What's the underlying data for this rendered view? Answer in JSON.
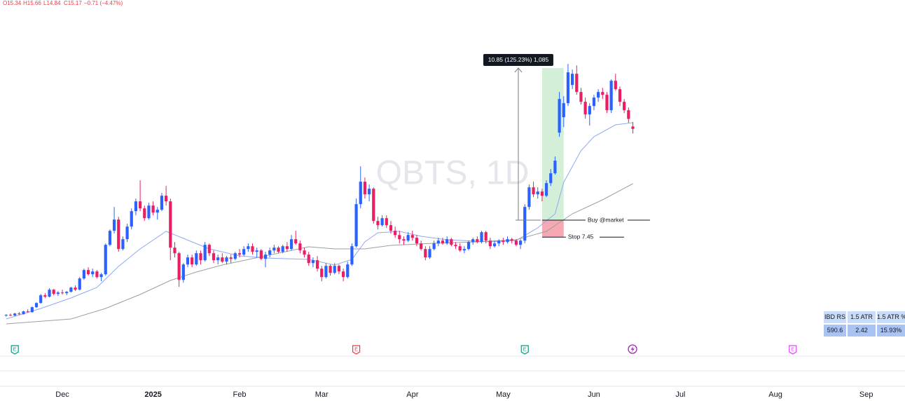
{
  "chart_data": {
    "type": "candlestick",
    "watermark": "QBTS, 1D",
    "header": {
      "ohlc": [
        "O15.34",
        "H15.66",
        "L14.84",
        "C15.17"
      ],
      "change": "−0.71 (−4.47%)"
    },
    "up_color": "#2962ff",
    "down_color": "#e91e63",
    "xlim": [
      -1.43,
      207.97
    ],
    "ylim": [
      0.86,
      24.36
    ],
    "xticks": [
      {
        "value": 13,
        "label": "Dec"
      },
      {
        "value": 34,
        "label": "2025"
      },
      {
        "value": 54,
        "label": "Feb"
      },
      {
        "value": 73,
        "label": "Mar"
      },
      {
        "value": 94,
        "label": "Apr"
      },
      {
        "value": 115,
        "label": "May"
      },
      {
        "value": 136,
        "label": "Jun"
      },
      {
        "value": 156,
        "label": "Jul"
      },
      {
        "value": 178,
        "label": "Aug"
      },
      {
        "value": 199,
        "label": "Sep"
      }
    ],
    "x": [
      0,
      1,
      2,
      3,
      4,
      5,
      6,
      7,
      8,
      9,
      10,
      11,
      12,
      13,
      14,
      15,
      16,
      17,
      18,
      19,
      20,
      21,
      22,
      23,
      24,
      25,
      26,
      27,
      28,
      29,
      30,
      31,
      32,
      33,
      34,
      35,
      36,
      37,
      38,
      39,
      40,
      41,
      42,
      43,
      44,
      45,
      46,
      47,
      48,
      49,
      50,
      51,
      52,
      53,
      54,
      55,
      56,
      57,
      58,
      59,
      60,
      61,
      62,
      63,
      64,
      65,
      66,
      67,
      68,
      69,
      70,
      71,
      72,
      73,
      74,
      75,
      76,
      77,
      78,
      79,
      80,
      81,
      82,
      83,
      84,
      85,
      86,
      87,
      88,
      89,
      90,
      91,
      92,
      93,
      94,
      95,
      96,
      97,
      98,
      99,
      100,
      101,
      102,
      103,
      104,
      105,
      106,
      107,
      108,
      109,
      110,
      111,
      112,
      113,
      114,
      115,
      116,
      117,
      118,
      119,
      120,
      121,
      122,
      123,
      124,
      125,
      126,
      127,
      128,
      129,
      130,
      131,
      132,
      133,
      134,
      135,
      136,
      137,
      138,
      139,
      140,
      141,
      142,
      143,
      144,
      145
    ],
    "open": [
      1.85,
      1.9,
      1.86,
      2.0,
      1.95,
      2.15,
      2.1,
      2.45,
      2.75,
      3.3,
      3.2,
      3.7,
      3.4,
      3.5,
      3.45,
      3.55,
      3.85,
      3.7,
      4.5,
      5.1,
      4.8,
      5.0,
      4.6,
      4.8,
      6.9,
      7.9,
      8.7,
      6.6,
      7.3,
      8.2,
      9.3,
      10.0,
      9.5,
      8.8,
      9.7,
      9.2,
      9.4,
      10.4,
      10.0,
      6.7,
      6.3,
      4.4,
      5.5,
      6.0,
      5.5,
      6.3,
      5.8,
      6.9,
      6.3,
      5.8,
      6.0,
      5.7,
      6.0,
      5.9,
      6.3,
      6.2,
      6.6,
      6.8,
      6.4,
      6.5,
      5.9,
      6.2,
      6.5,
      6.7,
      6.4,
      6.8,
      6.6,
      7.3,
      7.0,
      6.5,
      6.2,
      5.6,
      5.8,
      5.2,
      4.6,
      5.4,
      4.9,
      5.4,
      5.0,
      4.6,
      5.5,
      6.8,
      9.8,
      11.4,
      10.5,
      10.9,
      8.6,
      8.3,
      8.8,
      8.3,
      7.9,
      7.6,
      7.3,
      7.2,
      7.6,
      7.4,
      7.0,
      6.6,
      6.0,
      6.6,
      7.0,
      7.2,
      7.0,
      7.3,
      6.9,
      6.8,
      6.5,
      6.6,
      7.1,
      7.3,
      7.1,
      7.8,
      7.2,
      6.8,
      7.0,
      7.2,
      7.1,
      7.3,
      7.2,
      6.9,
      7.2,
      9.6,
      11.0,
      10.5,
      10.7,
      10.4,
      11.3,
      12.0,
      14.9,
      16.0,
      17.0,
      18.3,
      19.1,
      17.8,
      17.1,
      16.2,
      16.8,
      17.4,
      17.8,
      17.6,
      16.5,
      18.6,
      18.0,
      17.1,
      16.5,
      15.34
    ],
    "high": [
      1.95,
      2.0,
      2.05,
      2.1,
      2.2,
      2.3,
      2.5,
      2.8,
      3.4,
      3.45,
      3.8,
      3.75,
      3.6,
      3.7,
      3.6,
      3.9,
      4.0,
      4.6,
      5.2,
      5.3,
      5.2,
      5.1,
      4.9,
      7.0,
      8.0,
      9.6,
      8.9,
      7.5,
      8.4,
      9.5,
      10.2,
      11.5,
      9.7,
      9.9,
      10.0,
      9.6,
      10.6,
      11.1,
      10.2,
      7.1,
      6.4,
      5.6,
      6.2,
      6.2,
      6.5,
      6.5,
      7.1,
      7.0,
      6.5,
      6.2,
      6.3,
      6.1,
      6.2,
      6.4,
      6.6,
      6.8,
      7.0,
      7.0,
      6.7,
      6.6,
      6.4,
      6.7,
      6.9,
      6.8,
      6.9,
      7.1,
      7.6,
      7.9,
      7.2,
      6.7,
      6.4,
      6.0,
      6.1,
      5.4,
      5.6,
      5.5,
      5.6,
      5.5,
      5.2,
      5.7,
      7.0,
      10.2,
      12.5,
      11.7,
      11.2,
      11.0,
      8.9,
      9.0,
      9.0,
      8.6,
      8.2,
      7.9,
      7.5,
      7.8,
      7.9,
      7.6,
      7.2,
      6.8,
      6.8,
      7.2,
      7.4,
      7.4,
      7.5,
      7.4,
      7.1,
      7.0,
      6.8,
      7.2,
      7.4,
      7.5,
      7.9,
      7.9,
      7.4,
      7.2,
      7.3,
      7.4,
      7.5,
      7.4,
      7.3,
      7.3,
      9.8,
      11.2,
      11.4,
      11.0,
      10.9,
      11.5,
      12.3,
      13.2,
      17.8,
      17.5,
      19.8,
      19.4,
      19.7,
      18.1,
      17.4,
      17.0,
      17.6,
      18.0,
      18.1,
      17.8,
      18.7,
      19.1,
      18.2,
      17.3,
      16.7,
      15.66
    ],
    "low": [
      1.78,
      1.82,
      1.8,
      1.9,
      1.92,
      2.05,
      2.05,
      2.4,
      2.7,
      3.1,
      3.15,
      3.3,
      3.25,
      3.35,
      3.3,
      3.5,
      3.6,
      3.65,
      4.4,
      4.7,
      4.6,
      4.5,
      4.3,
      4.7,
      6.8,
      7.7,
      6.4,
      6.5,
      7.1,
      8.0,
      9.0,
      9.3,
      8.6,
      8.7,
      9.0,
      8.7,
      9.3,
      9.7,
      5.8,
      6.0,
      3.9,
      4.2,
      5.3,
      5.3,
      5.4,
      5.5,
      5.7,
      6.1,
      5.6,
      5.5,
      5.6,
      5.5,
      5.6,
      5.8,
      6.0,
      6.1,
      6.4,
      6.2,
      6.0,
      5.8,
      5.3,
      6.0,
      6.3,
      6.3,
      6.3,
      6.4,
      6.5,
      6.9,
      6.3,
      6.0,
      5.4,
      5.3,
      5.0,
      4.3,
      4.5,
      4.7,
      4.8,
      4.8,
      4.3,
      4.5,
      5.4,
      6.7,
      9.5,
      10.2,
      10.0,
      8.4,
      8.0,
      8.2,
      8.1,
      7.7,
      7.4,
      7.0,
      6.9,
      7.1,
      7.2,
      6.8,
      6.5,
      5.8,
      5.9,
      6.5,
      6.8,
      6.9,
      6.9,
      6.8,
      6.6,
      6.4,
      6.3,
      6.5,
      6.9,
      7.0,
      7.0,
      7.0,
      6.6,
      6.7,
      6.8,
      6.9,
      7.0,
      7.0,
      6.8,
      6.6,
      7.0,
      9.4,
      10.3,
      10.2,
      10.0,
      10.3,
      11.1,
      11.9,
      14.6,
      15.3,
      16.8,
      18.0,
      17.6,
      16.9,
      15.9,
      15.4,
      16.5,
      17.1,
      17.3,
      16.3,
      16.3,
      17.9,
      16.8,
      16.3,
      15.6,
      14.84
    ],
    "close": [
      1.9,
      1.86,
      2.0,
      1.95,
      2.15,
      2.1,
      2.45,
      2.75,
      3.3,
      3.2,
      3.7,
      3.4,
      3.5,
      3.45,
      3.55,
      3.85,
      3.7,
      4.5,
      5.1,
      4.8,
      5.0,
      4.6,
      4.8,
      6.9,
      7.9,
      8.7,
      6.6,
      7.3,
      8.2,
      9.3,
      10.0,
      9.5,
      8.8,
      9.7,
      9.2,
      9.4,
      10.4,
      10.0,
      6.7,
      6.3,
      4.4,
      5.5,
      6.0,
      5.5,
      6.3,
      5.8,
      6.9,
      6.3,
      5.8,
      6.0,
      5.7,
      6.0,
      5.9,
      6.3,
      6.2,
      6.6,
      6.8,
      6.4,
      6.5,
      5.9,
      6.2,
      6.5,
      6.7,
      6.4,
      6.8,
      6.6,
      7.3,
      7.0,
      6.5,
      6.2,
      5.6,
      5.8,
      5.2,
      4.6,
      5.4,
      4.9,
      5.4,
      5.0,
      4.6,
      5.5,
      6.8,
      9.8,
      11.4,
      10.5,
      10.9,
      8.6,
      8.3,
      8.8,
      8.3,
      7.9,
      7.6,
      7.3,
      7.2,
      7.6,
      7.4,
      7.0,
      6.6,
      6.0,
      6.6,
      7.0,
      7.2,
      7.0,
      7.3,
      6.9,
      6.8,
      6.5,
      6.6,
      7.1,
      7.3,
      7.1,
      7.8,
      7.2,
      6.8,
      7.0,
      7.2,
      7.1,
      7.3,
      7.2,
      6.9,
      7.2,
      9.6,
      11.0,
      10.5,
      10.7,
      10.4,
      11.3,
      12.0,
      12.9,
      17.3,
      17.0,
      19.2,
      19.1,
      17.8,
      17.1,
      16.2,
      16.8,
      17.4,
      17.8,
      17.6,
      16.5,
      18.6,
      18.0,
      17.1,
      16.5,
      15.88,
      15.17
    ],
    "moving_averages": [
      {
        "color": "#8fa8f6",
        "x": [
          0,
          8,
          15,
          21,
          26,
          31,
          37,
          41,
          47,
          54,
          60,
          70,
          76,
          80,
          83,
          86,
          91,
          96,
          102,
          112,
          118,
          123,
          127,
          129,
          133,
          136,
          141,
          145
        ],
        "values": [
          1.61,
          2.36,
          3.11,
          3.86,
          5.36,
          6.61,
          7.86,
          7.36,
          6.61,
          6.11,
          5.96,
          5.86,
          5.46,
          5.86,
          7.11,
          7.76,
          7.86,
          7.51,
          7.26,
          7.11,
          7.21,
          8.11,
          9.11,
          11.36,
          13.61,
          14.61,
          15.46,
          15.61
        ]
      },
      {
        "color": "#9e9e9e",
        "x": [
          0,
          15,
          23,
          31,
          38,
          44,
          50,
          60,
          70,
          76,
          83,
          89,
          99,
          109,
          118,
          125,
          131,
          138,
          145
        ],
        "values": [
          1.26,
          1.61,
          2.36,
          3.36,
          4.36,
          4.96,
          5.46,
          6.11,
          6.76,
          6.61,
          6.61,
          6.86,
          7.01,
          7.11,
          7.26,
          7.86,
          9.11,
          10.11,
          11.26
        ]
      }
    ],
    "measure": {
      "label": "10.85 (125.23%) 1,085",
      "x": 118.5,
      "from": 8.66,
      "to": 19.51
    },
    "position": {
      "start": 124,
      "end": 129,
      "entry": 8.66,
      "stop": 7.45,
      "target": 19.51,
      "entry_label": "Buy @market",
      "stop_label": "Stop 7.45"
    },
    "events": [
      {
        "label": "E",
        "x": 2,
        "color": "#089981"
      },
      {
        "label": "E",
        "x": 81,
        "color": "#f23645"
      },
      {
        "label": "E",
        "x": 120,
        "color": "#089981"
      },
      {
        "label": "E",
        "x": 182,
        "color": "#e040fb"
      }
    ],
    "table": {
      "header": [
        "IBD RS",
        "1.5 ATR",
        "1.5 ATR %"
      ],
      "rows": [
        [
          "590.6",
          "2.42",
          "15.93%"
        ]
      ]
    }
  }
}
